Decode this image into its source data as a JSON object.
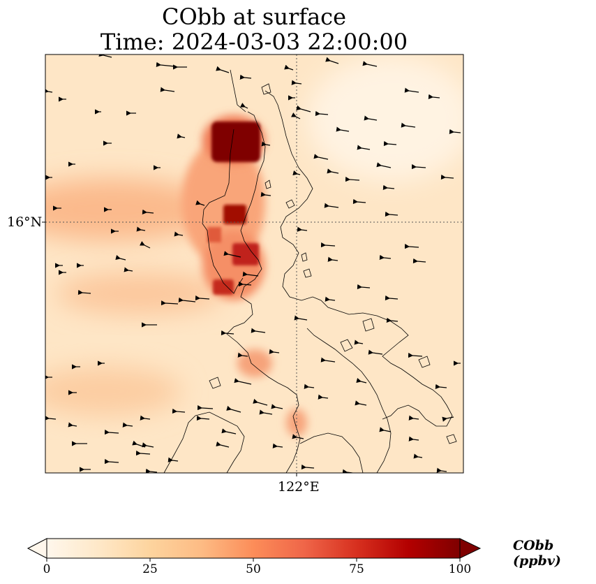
{
  "title": {
    "line1": "CObb at surface",
    "line2": "Time: 2024-03-03 22:00:00"
  },
  "axes": {
    "lat_tick": "16°N",
    "lon_tick": "122°E"
  },
  "colorbar": {
    "label": "CObb (ppbv)",
    "min": 0,
    "max": 100,
    "ticks": [
      "0",
      "25",
      "50",
      "75",
      "100"
    ],
    "colormap": "OrRd",
    "colors": [
      "#fff7ec",
      "#fee8c8",
      "#fdd49e",
      "#fdbb84",
      "#fc8d59",
      "#ef6548",
      "#d7301f",
      "#b30000",
      "#7f0000"
    ],
    "extend": "both"
  },
  "map": {
    "gridlines": "dotted",
    "wind_vectors": true,
    "coastlines": true
  },
  "chart_data": {
    "type": "heatmap",
    "title": "CObb at surface Time: 2024-03-03 22:00:00",
    "field": "CObb (ppbv)",
    "value_range": [
      0,
      100
    ],
    "plumes": [
      {
        "lon": 121.85,
        "lat": 16.8,
        "value": 100
      },
      {
        "lon": 121.8,
        "lat": 16.05,
        "value": 95
      },
      {
        "lon": 121.75,
        "lat": 15.75,
        "value": 85
      },
      {
        "lon": 121.65,
        "lat": 15.55,
        "value": 90
      },
      {
        "lon": 121.6,
        "lat": 15.95,
        "value": 65
      }
    ],
    "background_value": 12,
    "wind": "easterly"
  }
}
